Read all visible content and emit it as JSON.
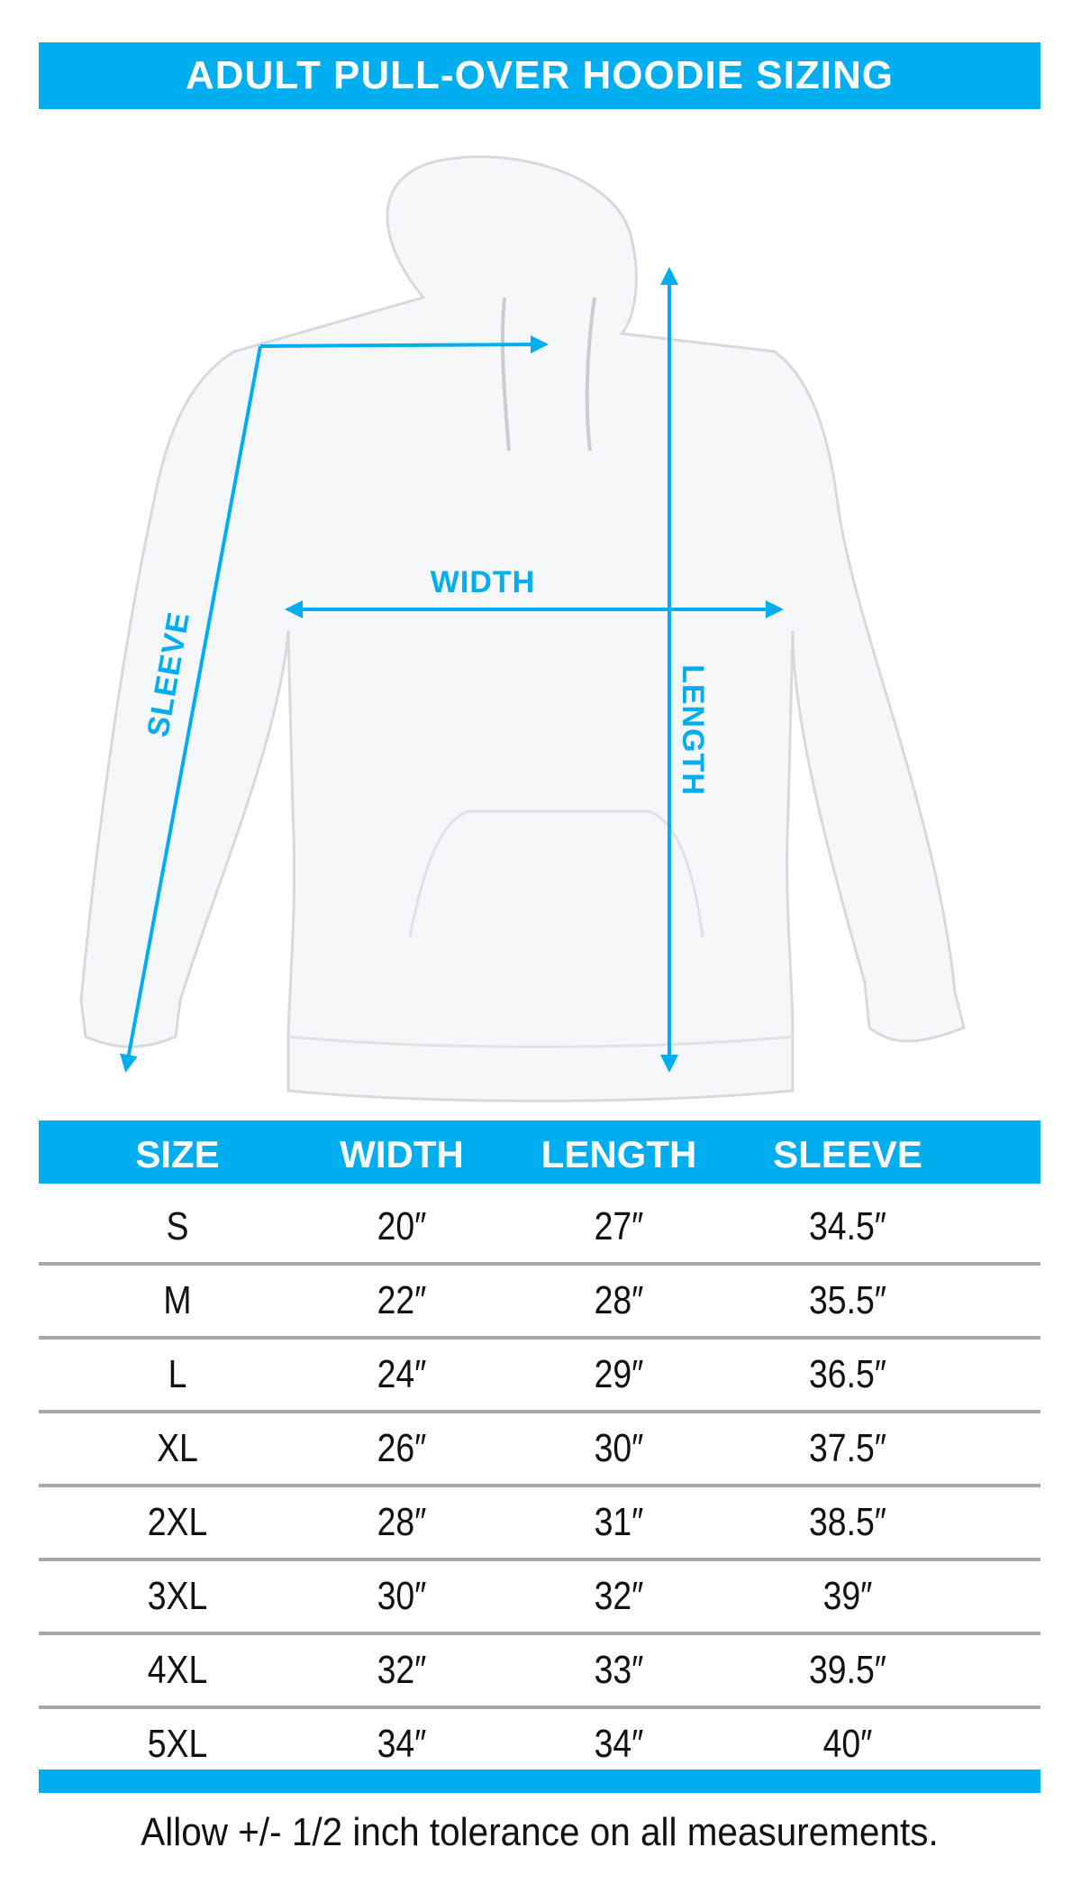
{
  "title": "ADULT PULL-OVER HOODIE SIZING",
  "colors": {
    "accent": "#00aeef",
    "divider": "#a9a9a9",
    "text": "#111111"
  },
  "diagram": {
    "width_label": "WIDTH",
    "length_label": "LENGTH",
    "sleeve_label": "SLEEVE"
  },
  "table": {
    "headers": [
      "SIZE",
      "WIDTH",
      "LENGTH",
      "SLEEVE"
    ],
    "rows": [
      [
        "S",
        "20″",
        "27″",
        "34.5″"
      ],
      [
        "M",
        "22″",
        "28″",
        "35.5″"
      ],
      [
        "L",
        "24″",
        "29″",
        "36.5″"
      ],
      [
        "XL",
        "26″",
        "30″",
        "37.5″"
      ],
      [
        "2XL",
        "28″",
        "31″",
        "38.5″"
      ],
      [
        "3XL",
        "30″",
        "32″",
        "39″"
      ],
      [
        "4XL",
        "32″",
        "33″",
        "39.5″"
      ],
      [
        "5XL",
        "34″",
        "34″",
        "40″"
      ]
    ]
  },
  "footer": "Allow +/- 1/2 inch tolerance on all measurements."
}
